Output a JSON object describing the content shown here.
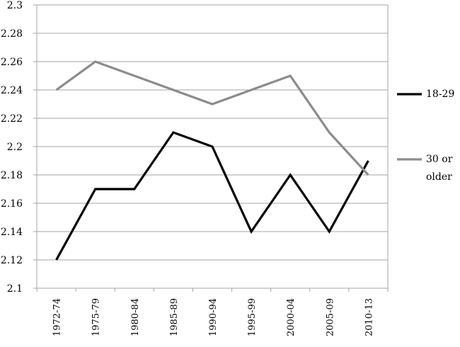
{
  "chart_data": {
    "type": "line",
    "title": "",
    "xlabel": "",
    "ylabel": "",
    "categories": [
      "1972-74",
      "1975-79",
      "1980-84",
      "1985-89",
      "1990-94",
      "1995-99",
      "2000-04",
      "2005-09",
      "2010-13"
    ],
    "ylim": [
      2.1,
      2.3
    ],
    "yticks": [
      2.1,
      2.12,
      2.14,
      2.16,
      2.18,
      2.2,
      2.22,
      2.24,
      2.26,
      2.28,
      2.3
    ],
    "ytick_labels": [
      "2.1",
      "2.12",
      "2.14",
      "2.16",
      "2.18",
      "2.2",
      "2.22",
      "2.24",
      "2.26",
      "2.28",
      "2.3"
    ],
    "grid": "horizontal",
    "legend_position": "right",
    "series": [
      {
        "name": "18-29",
        "legend_lines": [
          "18-29"
        ],
        "color": "#000000",
        "values": [
          2.12,
          2.17,
          2.17,
          2.21,
          2.2,
          2.14,
          2.18,
          2.14,
          2.19
        ]
      },
      {
        "name": "30 or older",
        "legend_lines": [
          "30 or",
          "older"
        ],
        "color": "#8c8c8c",
        "values": [
          2.24,
          2.26,
          2.25,
          2.24,
          2.23,
          2.24,
          2.25,
          2.21,
          2.18
        ]
      }
    ]
  }
}
